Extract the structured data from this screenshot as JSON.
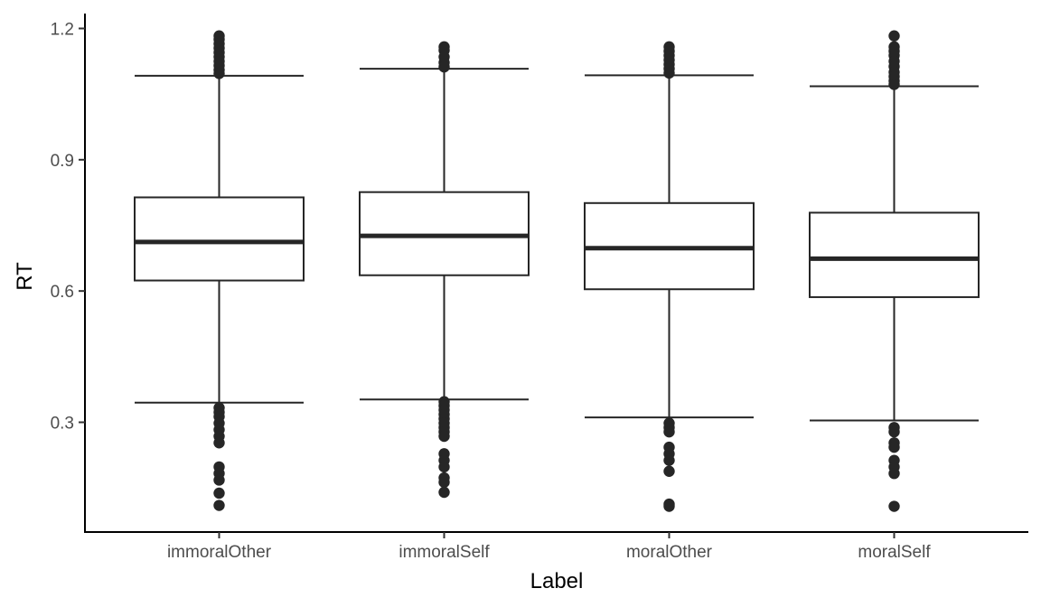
{
  "chart_data": {
    "type": "boxplot",
    "title": "",
    "xlabel": "Label",
    "ylabel": "RT",
    "ylim": [
      0.1,
      1.2
    ],
    "yticks": [
      0.3,
      0.6,
      0.9,
      1.2
    ],
    "yticklabels": [
      "0.3",
      "0.6",
      "0.9",
      "1.2"
    ],
    "grid": false,
    "legend": "none",
    "categories": [
      "immoralOther",
      "immoralSelf",
      "moralOther",
      "moralSelf"
    ],
    "boxes": [
      {
        "category": "immoralOther",
        "whisker_low": 0.345,
        "q1": 0.624,
        "median": 0.712,
        "q3": 0.814,
        "whisker_high": 1.092,
        "outliers": [
          1.183,
          1.175,
          1.165,
          1.155,
          1.145,
          1.135,
          1.125,
          1.115,
          1.105,
          1.097,
          0.333,
          0.323,
          0.313,
          0.298,
          0.283,
          0.268,
          0.253,
          0.198,
          0.183,
          0.168,
          0.138,
          0.11
        ]
      },
      {
        "category": "immoralSelf",
        "whisker_low": 0.352,
        "q1": 0.636,
        "median": 0.726,
        "q3": 0.826,
        "whisker_high": 1.108,
        "outliers": [
          1.158,
          1.15,
          1.135,
          1.122,
          1.112,
          0.347,
          0.338,
          0.328,
          0.318,
          0.308,
          0.298,
          0.288,
          0.278,
          0.268,
          0.228,
          0.213,
          0.198,
          0.173,
          0.163,
          0.14
        ]
      },
      {
        "category": "moralOther",
        "whisker_low": 0.311,
        "q1": 0.604,
        "median": 0.698,
        "q3": 0.801,
        "whisker_high": 1.093,
        "outliers": [
          1.158,
          1.148,
          1.138,
          1.128,
          1.118,
          1.108,
          1.098,
          0.298,
          0.288,
          0.278,
          0.243,
          0.228,
          0.213,
          0.188,
          0.113,
          0.108
        ]
      },
      {
        "category": "moralSelf",
        "whisker_low": 0.304,
        "q1": 0.586,
        "median": 0.674,
        "q3": 0.779,
        "whisker_high": 1.068,
        "outliers": [
          1.183,
          1.158,
          1.148,
          1.138,
          1.125,
          1.113,
          1.1,
          1.09,
          1.08,
          1.072,
          0.288,
          0.278,
          0.253,
          0.243,
          0.213,
          0.198,
          0.183,
          0.108
        ]
      }
    ]
  }
}
